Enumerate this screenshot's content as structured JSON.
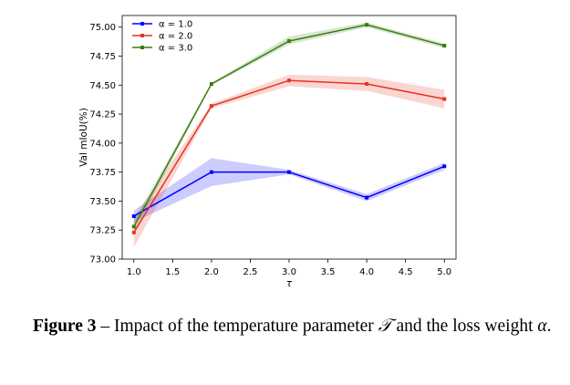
{
  "chart_data": {
    "type": "line",
    "title": "",
    "xlabel": "τ",
    "ylabel": "Val mIoU(%)",
    "x": [
      1.0,
      2.0,
      3.0,
      4.0,
      5.0
    ],
    "xlim": [
      0.85,
      5.15
    ],
    "ylim": [
      73.0,
      75.1
    ],
    "xticks": [
      "1.0",
      "1.5",
      "2.0",
      "2.5",
      "3.0",
      "3.5",
      "4.0",
      "4.5",
      "5.0"
    ],
    "yticks": [
      "73.00",
      "73.25",
      "73.50",
      "73.75",
      "74.00",
      "74.25",
      "74.50",
      "74.75",
      "75.00"
    ],
    "legend_position": "top-left",
    "series": [
      {
        "name": "α = 1.0",
        "color": "#0000ff",
        "values": [
          73.37,
          73.75,
          73.75,
          73.53,
          73.8
        ],
        "lower": [
          73.32,
          73.63,
          73.73,
          73.5,
          73.77
        ],
        "upper": [
          73.42,
          73.87,
          73.77,
          73.56,
          73.83
        ]
      },
      {
        "name": "α = 2.0",
        "color": "#e8321e",
        "values": [
          73.23,
          74.32,
          74.54,
          74.51,
          74.38
        ],
        "lower": [
          73.1,
          74.3,
          74.49,
          74.45,
          74.3
        ],
        "upper": [
          73.36,
          74.34,
          74.59,
          74.57,
          74.46
        ]
      },
      {
        "name": "α = 3.0",
        "color": "#3a7d12",
        "values": [
          73.28,
          74.51,
          74.88,
          75.02,
          74.84
        ],
        "lower": [
          73.23,
          74.5,
          74.85,
          75.0,
          74.82
        ],
        "upper": [
          73.33,
          74.52,
          74.92,
          75.04,
          74.86
        ]
      }
    ]
  },
  "caption": {
    "label": "Figure 3",
    "dash": " – ",
    "text_before": "Impact of the temperature parameter ",
    "symbol_tau": "𝒯",
    "text_middle": " and the loss weight ",
    "symbol_alpha": "α",
    "text_end": "."
  }
}
